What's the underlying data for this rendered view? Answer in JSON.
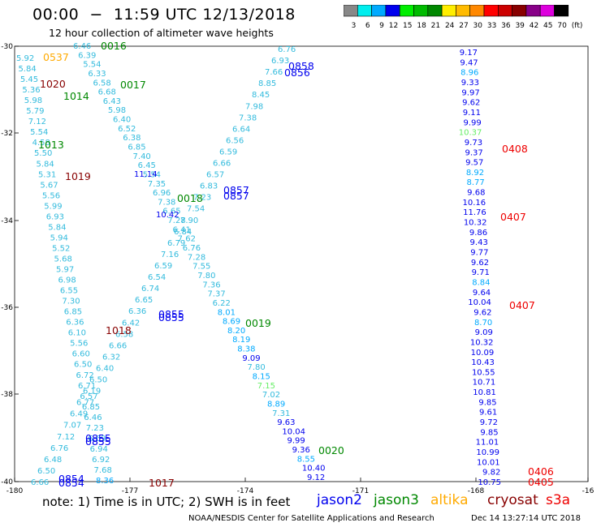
{
  "header": {
    "title": "00:00  −  11:59 UTC 12/13/2018",
    "subtitle": "12 hour collection of altimeter wave heights"
  },
  "colorbar": {
    "unit_label": "(ft)",
    "bins": [
      {
        "label": "3",
        "color": "#888888"
      },
      {
        "label": "6",
        "color": "#00eeee"
      },
      {
        "label": "9",
        "color": "#00aaff"
      },
      {
        "label": "12",
        "color": "#0000ee"
      },
      {
        "label": "15",
        "color": "#00ee00"
      },
      {
        "label": "18",
        "color": "#00bb00"
      },
      {
        "label": "21",
        "color": "#008800"
      },
      {
        "label": "24",
        "color": "#ffee00"
      },
      {
        "label": "27",
        "color": "#ffbb00"
      },
      {
        "label": "30",
        "color": "#ff8800"
      },
      {
        "label": "33",
        "color": "#ff0000"
      },
      {
        "label": "36",
        "color": "#cc0000"
      },
      {
        "label": "39",
        "color": "#880000"
      },
      {
        "label": "42",
        "color": "#880088"
      },
      {
        "label": "45",
        "color": "#dd00dd"
      },
      {
        "label": "70",
        "color": "#000000"
      }
    ]
  },
  "axes": {
    "x_ticks": [
      "-180",
      "-177",
      "-174",
      "-171",
      "-168",
      "-16"
    ],
    "y_ticks": [
      "-30",
      "-32",
      "-34",
      "-36",
      "-38",
      "-40"
    ]
  },
  "tracks": {
    "colors": {
      "light": "#33bbdd",
      "mid": "#00aaff",
      "dark": "#0000ee",
      "green": "#00bb00",
      "lightgreen": "#66ee66"
    },
    "line_left": [
      "5.92",
      "5.84",
      "5.45",
      "5.36",
      "5.98",
      "5.79",
      "7.12",
      "5.54",
      "4.58",
      "5.50",
      "5.84",
      "5.31",
      "5.67",
      "5.56",
      "5.99",
      "6.93",
      "5.84",
      "5.94",
      "5.52",
      "5.68",
      "5.97",
      "6.98",
      "6.55",
      "7.30",
      "6.85",
      "6.36",
      "6.10",
      "5.56",
      "6.60",
      "6.50",
      "6.72",
      "6.71",
      "6.57",
      "6.85",
      "6.46",
      "7.23",
      "6.69",
      "6.94",
      "6.92",
      "7.68",
      "8.36"
    ],
    "line_upper_left": [
      "6.46",
      "6.39",
      "5.54",
      "6.33",
      "6.58",
      "6.68",
      "6.43",
      "5.98",
      "6.40",
      "6.52",
      "6.38",
      "6.85",
      "7.40",
      "6.45",
      "5.54",
      "7.35",
      "6.96",
      "7.38",
      "6.65",
      "7.28",
      "6.41",
      "7.62",
      "6.76",
      "7.28",
      "7.55",
      "7.80",
      "7.36",
      "7.37",
      "6.22",
      "8.01",
      "8.69",
      "8.20",
      "8.19",
      "8.38",
      "9.09",
      "7.80",
      "8.15",
      "7.15",
      "7.02",
      "8.89",
      "7.31",
      "9.63",
      "10.04",
      "9.99",
      "9.36",
      "8.55",
      "10.40",
      "9.12"
    ],
    "line_diag_up": [
      "6.76",
      "6.93",
      "7.66",
      "8.85",
      "8.45",
      "7.98",
      "7.38",
      "6.64",
      "6.56",
      "6.59",
      "6.66",
      "6.57",
      "6.83",
      "7.23",
      "7.54",
      "7.90",
      "6.84",
      "6.79",
      "7.16",
      "6.59",
      "6.54",
      "6.74",
      "6.65",
      "6.36",
      "6.42",
      "6.58",
      "6.66",
      "6.32",
      "6.40",
      "6.50",
      "6.19",
      "6.77",
      "6.49",
      "7.07",
      "7.12",
      "6.76",
      "6.48",
      "6.50",
      "6.66"
    ],
    "line_right": [
      "9.17",
      "9.47",
      "8.96",
      "9.33",
      "9.97",
      "9.62",
      "9.11",
      "9.99",
      "10.37",
      "9.73",
      "9.37",
      "9.57",
      "8.92",
      "8.77",
      "9.68",
      "10.16",
      "11.76",
      "10.32",
      "9.86",
      "9.43",
      "9.77",
      "9.62",
      "9.71",
      "8.84",
      "9.64",
      "10.04",
      "9.62",
      "8.70",
      "9.09",
      "10.32",
      "10.09",
      "10.43",
      "10.55",
      "10.71",
      "10.81",
      "9.85",
      "9.61",
      "9.72",
      "9.85",
      "11.01",
      "10.99",
      "10.01",
      "9.82",
      "10.75"
    ],
    "blue_small": [
      "11.14",
      "10.42"
    ]
  },
  "time_labels": [
    {
      "text": "0016",
      "sat": "jason3"
    },
    {
      "text": "0537",
      "sat": "altika"
    },
    {
      "text": "1020",
      "sat": "cryosat"
    },
    {
      "text": "0017",
      "sat": "jason3"
    },
    {
      "text": "1014",
      "sat": "jason3"
    },
    {
      "text": "1013",
      "sat": "jason3"
    },
    {
      "text": "1019",
      "sat": "cryosat"
    },
    {
      "text": "0018",
      "sat": "jason3"
    },
    {
      "text": "1018",
      "sat": "cryosat"
    },
    {
      "text": "0019",
      "sat": "jason3"
    },
    {
      "text": "0020",
      "sat": "jason3"
    },
    {
      "text": "1017",
      "sat": "cryosat"
    },
    {
      "text": "0858",
      "sat": "jason2"
    },
    {
      "text": "0856",
      "sat": "jason2"
    },
    {
      "text": "0857",
      "sat": "jason2"
    },
    {
      "text": "0855",
      "sat": "jason2"
    },
    {
      "text": "0854",
      "sat": "jason2"
    },
    {
      "text": "0408",
      "sat": "s3a"
    },
    {
      "text": "0407",
      "sat": "s3a"
    },
    {
      "text": "0406",
      "sat": "s3a"
    },
    {
      "text": "0405",
      "sat": "s3a"
    }
  ],
  "legend": {
    "note": "note:  1) Time is in UTC;  2) SWH is in feet",
    "satellites": [
      {
        "name": "jason2",
        "color": "#0000ee"
      },
      {
        "name": "jason3",
        "color": "#008800"
      },
      {
        "name": "altika",
        "color": "#ffaa00"
      },
      {
        "name": "cryosat",
        "color": "#880000"
      },
      {
        "name": "s3a",
        "color": "#ee0000"
      }
    ]
  },
  "footer": {
    "credit": "NOAA/NESDIS Center for Satellite Applications and Research",
    "timestamp": "Dec 14 13:27:14 UTC 2018"
  }
}
